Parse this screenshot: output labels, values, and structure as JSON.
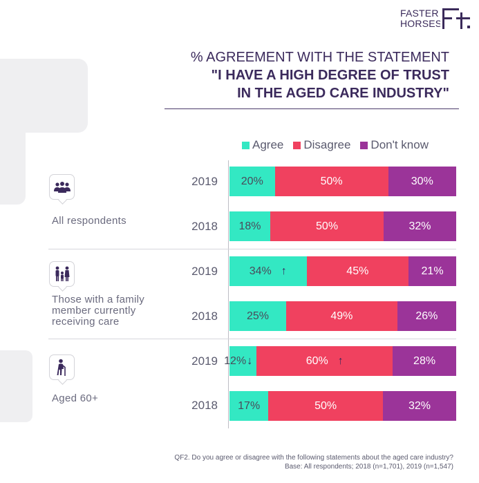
{
  "brand": {
    "name": "FASTER HORSES",
    "line1": "FASTER",
    "line2": "HORSES"
  },
  "title": {
    "line1": "% AGREEMENT WITH THE STATEMENT",
    "line2": "\"I HAVE A HIGH DEGREE OF TRUST",
    "line3": "IN THE AGED CARE INDUSTRY\""
  },
  "colors": {
    "agree": "#33e8c3",
    "disagree": "#f0415f",
    "dont_know": "#9b3499"
  },
  "groups": [
    {
      "label": "All respondents",
      "icon": "group-of-people-icon"
    },
    {
      "label": "Those with a family\nmember currently\nreceiving care",
      "icon": "family-icon"
    },
    {
      "label": "Aged 60+",
      "icon": "elderly-person-with-cane-icon"
    }
  ],
  "chart_data": {
    "type": "bar",
    "stacked": true,
    "orientation": "horizontal",
    "title": "% AGREEMENT WITH THE STATEMENT \"I HAVE A HIGH DEGREE OF TRUST IN THE AGED CARE INDUSTRY\"",
    "legend": [
      "Agree",
      "Disagree",
      "Don't know"
    ],
    "legend_position": "top",
    "xlim": [
      0,
      100
    ],
    "rows": [
      {
        "group": "All respondents",
        "year": "2019",
        "values": [
          20,
          50,
          30
        ],
        "labels": [
          "20%",
          "50%",
          "30%"
        ],
        "arrows": [
          null,
          null,
          null
        ]
      },
      {
        "group": "All respondents",
        "year": "2018",
        "values": [
          18,
          50,
          32
        ],
        "labels": [
          "18%",
          "50%",
          "32%"
        ],
        "arrows": [
          null,
          null,
          null
        ]
      },
      {
        "group": "Those with a family member currently receiving care",
        "year": "2019",
        "values": [
          34,
          45,
          21
        ],
        "labels": [
          "34%",
          "45%",
          "21%"
        ],
        "arrows": [
          "↑",
          null,
          null
        ]
      },
      {
        "group": "Those with a family member currently receiving care",
        "year": "2018",
        "values": [
          25,
          49,
          26
        ],
        "labels": [
          "25%",
          "49%",
          "26%"
        ],
        "arrows": [
          null,
          null,
          null
        ]
      },
      {
        "group": "Aged 60+",
        "year": "2019",
        "values": [
          12,
          60,
          28
        ],
        "labels": [
          "12%",
          "60%",
          "28%"
        ],
        "arrows": [
          "↓",
          "↑",
          null
        ]
      },
      {
        "group": "Aged 60+",
        "year": "2018",
        "values": [
          17,
          50,
          32
        ],
        "labels": [
          "17%",
          "50%",
          "32%"
        ],
        "arrows": [
          null,
          null,
          null
        ]
      }
    ]
  },
  "footnote": {
    "line1": "QF2. Do you agree or disagree with the following statements about the aged care industry?",
    "line2": "Base: All respondents; 2018 (n=1,701), 2019 (n=1,547)"
  }
}
